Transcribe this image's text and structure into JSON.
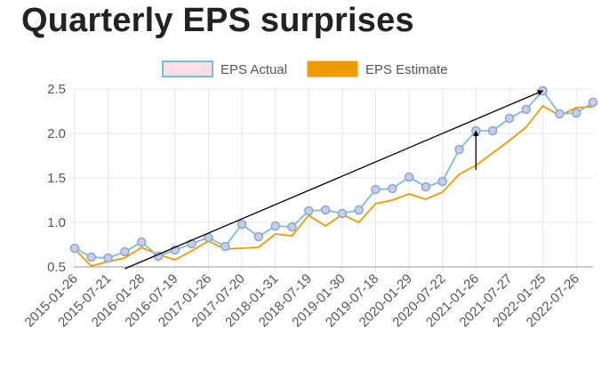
{
  "page_title": "Quarterly EPS surprises",
  "colors": {
    "actual_line": "#74c0d4",
    "actual_marker_fill": "#c8cdeb",
    "actual_marker_stroke": "#8aa6d0",
    "legend_actual_fill": "#fde0e6",
    "estimate": "#f09a00",
    "grid": "#e6e6e6",
    "axis": "#999999",
    "arrow": "#000000"
  },
  "chart_data": {
    "type": "line",
    "x": [
      "2015-01-26",
      "2015-04-21",
      "2015-07-21",
      "2015-10-20",
      "2016-01-28",
      "2016-04-25",
      "2016-07-19",
      "2016-10-24",
      "2017-01-26",
      "2017-04-25",
      "2017-07-20",
      "2017-10-19",
      "2018-01-31",
      "2018-04-26",
      "2018-07-19",
      "2018-10-24",
      "2019-01-30",
      "2019-04-24",
      "2019-07-18",
      "2019-10-21",
      "2020-01-29",
      "2020-04-27",
      "2020-07-22",
      "2020-10-20",
      "2021-01-26",
      "2021-04-27",
      "2021-07-27",
      "2021-10-26",
      "2022-01-25",
      "2022-04-26",
      "2022-07-26",
      "2022-10-25"
    ],
    "xticks": [
      "2015-01-26",
      "2015-07-21",
      "2016-01-28",
      "2016-07-19",
      "2017-01-26",
      "2017-07-20",
      "2018-01-31",
      "2018-07-19",
      "2019-01-30",
      "2019-07-18",
      "2020-01-29",
      "2020-07-22",
      "2021-01-26",
      "2021-07-27",
      "2022-01-25",
      "2022-07-26"
    ],
    "series": [
      {
        "name": "EPS Actual",
        "values": [
          0.71,
          0.61,
          0.6,
          0.67,
          0.78,
          0.62,
          0.69,
          0.76,
          0.83,
          0.73,
          0.98,
          0.84,
          0.96,
          0.95,
          1.13,
          1.14,
          1.1,
          1.14,
          1.37,
          1.38,
          1.51,
          1.4,
          1.46,
          1.82,
          2.03,
          2.03,
          2.17,
          2.27,
          2.48,
          2.22,
          2.23,
          2.35
        ]
      },
      {
        "name": "EPS Estimate",
        "values": [
          0.7,
          0.51,
          0.56,
          0.6,
          0.72,
          0.64,
          0.58,
          0.68,
          0.79,
          0.7,
          0.71,
          0.72,
          0.87,
          0.85,
          1.08,
          0.96,
          1.09,
          1.0,
          1.21,
          1.25,
          1.32,
          1.26,
          1.34,
          1.54,
          1.64,
          1.78,
          1.92,
          2.07,
          2.31,
          2.2,
          2.29,
          2.3
        ]
      }
    ],
    "yticks": [
      "0.5",
      "1.0",
      "1.5",
      "2.0",
      "2.5"
    ],
    "ylim": [
      0.5,
      2.5
    ],
    "grid": true,
    "legend_position": "top-center",
    "annotations": [
      {
        "type": "arrow",
        "from": {
          "x": "2015-10-20",
          "y": 0.48
        },
        "to": {
          "x": "2022-01-25",
          "y": 2.48
        }
      },
      {
        "type": "arrow",
        "from": {
          "x": "2021-01-26",
          "y": 1.59
        },
        "to": {
          "x": "2021-01-26",
          "y": 2.03
        }
      }
    ]
  }
}
